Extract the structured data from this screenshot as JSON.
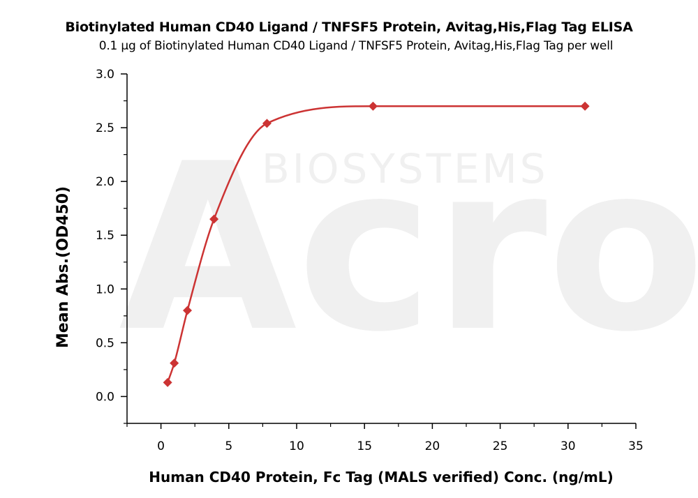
{
  "chart_data": {
    "type": "scatter",
    "title": "Biotinylated Human CD40 Ligand / TNFSF5 Protein, Avitag,His,Flag Tag ELISA",
    "subtitle": "0.1 μg of Biotinylated Human CD40 Ligand / TNFSF5 Protein, Avitag,His,Flag Tag per well",
    "xlabel": "Human CD40 Protein, Fc Tag (MALS verified) Conc. (ng/mL)",
    "ylabel": "Mean Abs.(OD450)",
    "xlim": [
      -2.5,
      35
    ],
    "ylim": [
      -0.25,
      3.0
    ],
    "xticks": [
      0,
      5,
      10,
      15,
      20,
      25,
      30,
      35
    ],
    "yticks": [
      0.0,
      0.5,
      1.0,
      1.5,
      2.0,
      2.5,
      3.0
    ],
    "xtick_labels": [
      "0",
      "5",
      "10",
      "15",
      "20",
      "25",
      "30",
      "35"
    ],
    "ytick_labels": [
      "0.0",
      "0.5",
      "1.0",
      "1.5",
      "2.0",
      "2.5",
      "3.0"
    ],
    "marker": "diamond",
    "color": "#cc3333",
    "fit": "sigmoidal curve",
    "grid": false,
    "series": [
      {
        "x": [
          0.49,
          0.98,
          1.95,
          3.91,
          7.81,
          15.63,
          31.25
        ],
        "y": [
          0.13,
          0.31,
          0.8,
          1.65,
          2.54,
          2.7,
          2.7
        ]
      }
    ]
  },
  "watermark": {
    "top": "BIOSYSTEMS",
    "main": "Acro"
  }
}
